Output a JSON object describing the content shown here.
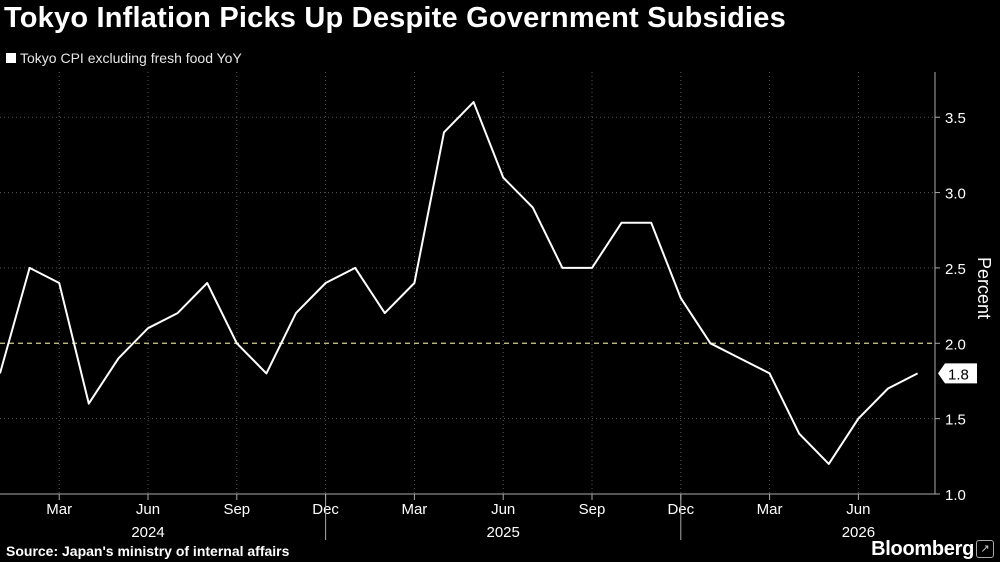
{
  "title": "Tokyo Inflation Picks Up Despite Government Subsidies",
  "source": "Source: Japan's ministry of internal affairs",
  "brand": "Bloomberg",
  "colors": {
    "background": "#000000",
    "line": "#ffffff",
    "grid": "#555555",
    "reference_line": "#cfcf9a"
  },
  "chart_data": {
    "type": "line",
    "series": [
      {
        "name": "Tokyo CPI excluding fresh food YoY",
        "x": [
          "2024-01",
          "2024-02",
          "2024-03",
          "2024-04",
          "2024-05",
          "2024-06",
          "2024-07",
          "2024-08",
          "2024-09",
          "2024-10",
          "2024-11",
          "2024-12",
          "2025-01",
          "2025-02",
          "2025-03",
          "2025-04",
          "2025-05",
          "2025-06",
          "2025-07",
          "2025-08",
          "2025-09",
          "2025-10",
          "2025-11",
          "2025-12",
          "2026-01",
          "2026-02",
          "2026-03",
          "2026-04",
          "2026-05",
          "2026-06",
          "2026-07",
          "2026-08"
        ],
        "values": [
          1.8,
          2.5,
          2.4,
          1.6,
          1.9,
          2.1,
          2.2,
          2.4,
          2.0,
          1.8,
          2.2,
          2.4,
          2.5,
          2.2,
          2.4,
          3.4,
          3.6,
          3.1,
          2.9,
          2.5,
          2.5,
          2.8,
          2.8,
          2.3,
          2.0,
          1.9,
          1.8,
          1.4,
          1.2,
          1.5,
          1.7,
          1.8
        ]
      }
    ],
    "ylabel": "Percent",
    "ylim": [
      1.0,
      3.8
    ],
    "yticks": [
      1.0,
      1.5,
      2.0,
      2.5,
      3.0,
      3.5
    ],
    "ytick_labels": [
      "1.0",
      "1.5",
      "2.0",
      "2.5",
      "3.0",
      "3.5"
    ],
    "xticks": [
      {
        "x": "2024-03",
        "label": "Mar"
      },
      {
        "x": "2024-06",
        "label": "Jun"
      },
      {
        "x": "2024-09",
        "label": "Sep"
      },
      {
        "x": "2024-12",
        "label": "Dec"
      },
      {
        "x": "2025-03",
        "label": "Mar"
      },
      {
        "x": "2025-06",
        "label": "Jun"
      },
      {
        "x": "2025-09",
        "label": "Sep"
      },
      {
        "x": "2025-12",
        "label": "Dec"
      },
      {
        "x": "2026-03",
        "label": "Mar"
      },
      {
        "x": "2026-06",
        "label": "Jun"
      }
    ],
    "year_labels": [
      {
        "x": "2024-06",
        "label": "2024"
      },
      {
        "x": "2025-06",
        "label": "2025"
      },
      {
        "x": "2026-06",
        "label": "2026"
      }
    ],
    "year_dividers": [
      "2024-12",
      "2025-12"
    ],
    "reference_line": 2.0,
    "last_value_label": "1.8",
    "grid": true,
    "legend_position": "top-left"
  }
}
